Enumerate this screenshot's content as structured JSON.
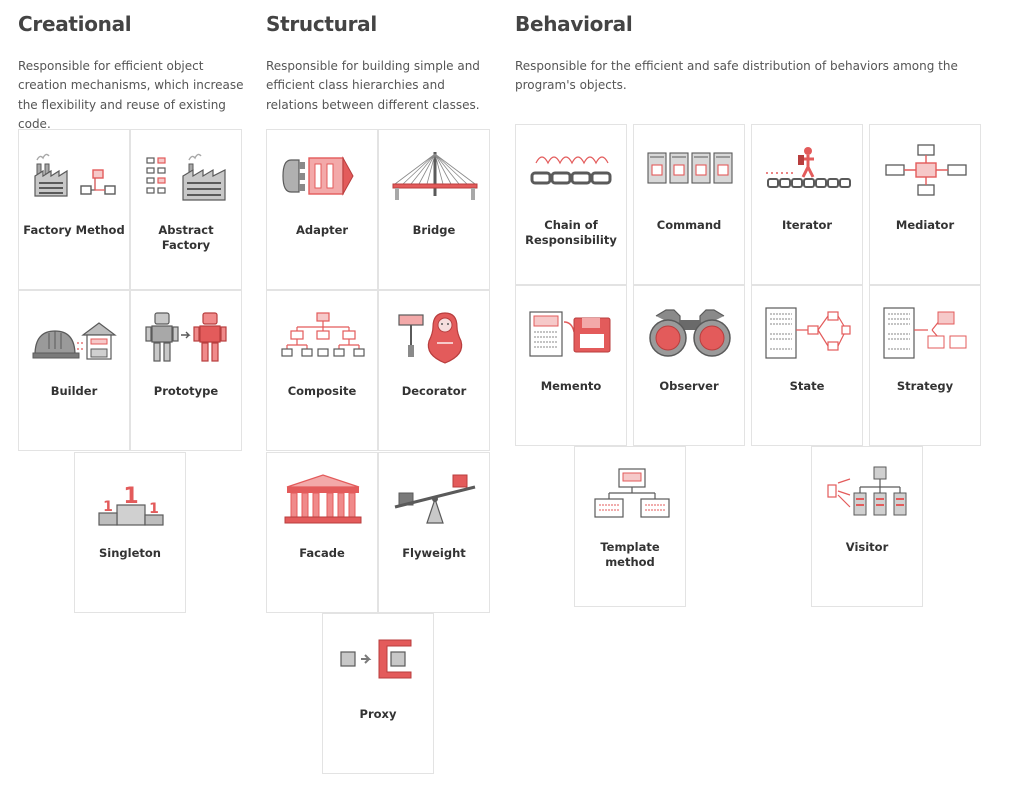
{
  "categories": [
    {
      "title": "Creational",
      "description": "Responsible for efficient object creation mechanisms, which increase the flexibility and reuse of existing code.",
      "patterns": [
        {
          "label": "Factory Method",
          "icon": "factory-icon"
        },
        {
          "label": "Abstract\nFactory",
          "icon": "abstract-factory-icon"
        },
        {
          "label": "Builder",
          "icon": "builder-icon"
        },
        {
          "label": "Prototype",
          "icon": "prototype-robot-icon"
        },
        {
          "label": "Singleton",
          "icon": "podium-icon"
        }
      ]
    },
    {
      "title": "Structural",
      "description": "Responsible for building simple and efficient class hierarchies and relations between different classes.",
      "patterns": [
        {
          "label": "Adapter",
          "icon": "adapter-icon"
        },
        {
          "label": "Bridge",
          "icon": "bridge-icon"
        },
        {
          "label": "Composite",
          "icon": "tree-icon"
        },
        {
          "label": "Decorator",
          "icon": "matryoshka-icon"
        },
        {
          "label": "Facade",
          "icon": "building-facade-icon"
        },
        {
          "label": "Flyweight",
          "icon": "seesaw-icon"
        },
        {
          "label": "Proxy",
          "icon": "proxy-icon"
        }
      ]
    },
    {
      "title": "Behavioral",
      "description": "Responsible for the efficient and safe distribution of behaviors among the program's objects.",
      "patterns": [
        {
          "label": "Chain of\nResponsibility",
          "icon": "chain-icon"
        },
        {
          "label": "Command",
          "icon": "command-icon"
        },
        {
          "label": "Iterator",
          "icon": "iterator-icon"
        },
        {
          "label": "Mediator",
          "icon": "mediator-icon"
        },
        {
          "label": "Memento",
          "icon": "floppy-icon"
        },
        {
          "label": "Observer",
          "icon": "binoculars-icon"
        },
        {
          "label": "State",
          "icon": "state-icon"
        },
        {
          "label": "Strategy",
          "icon": "strategy-icon"
        },
        {
          "label": "Template\nmethod",
          "icon": "template-icon"
        },
        {
          "label": "Visitor",
          "icon": "visitor-icon"
        }
      ]
    }
  ],
  "colors": {
    "accent": "#e35b5b",
    "accent_light": "#f3a9a9",
    "gray": "#a8a8a8",
    "outline": "#5a5a5a"
  }
}
